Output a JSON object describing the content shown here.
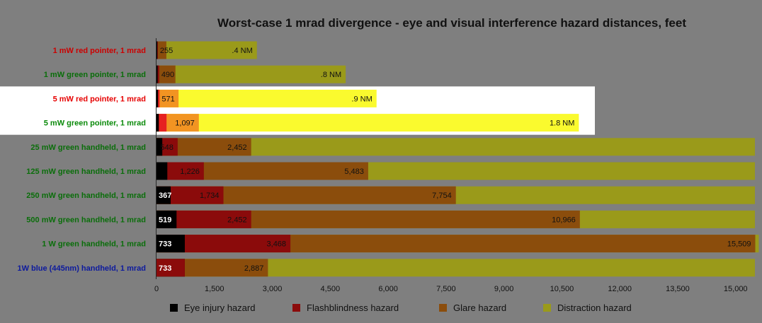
{
  "chart_data": {
    "type": "bar",
    "orientation": "horizontal",
    "stacked": true,
    "title": "Worst-case 1 mrad divergence - eye and visual interference hazard distances, feet",
    "xlabel": "",
    "ylabel": "",
    "xlim": [
      0,
      15500
    ],
    "x_ticks": [
      "0",
      "1,500",
      "3,000",
      "4,500",
      "6,000",
      "7,500",
      "9,000",
      "10,500",
      "12,000",
      "13,500",
      "15,000"
    ],
    "x_tick_values": [
      0,
      1500,
      3000,
      4500,
      6000,
      7500,
      9000,
      10500,
      12000,
      13500,
      15000
    ],
    "grid": false,
    "legend_position": "bottom",
    "series_names": [
      "Eye injury hazard",
      "Flashblindness hazard",
      "Glare hazard",
      "Distraction hazard"
    ],
    "categories": [
      {
        "label": "1 mW red pointer, 1 mrad",
        "label_color": "#cc0000",
        "highlight": false,
        "segments": [
          {
            "value": 20,
            "color": "#000000",
            "label": ""
          },
          {
            "value": 35,
            "color": "#8b0b0b",
            "label": ""
          },
          {
            "value": 255,
            "color": "#8b4d0c",
            "label": "255"
          },
          {
            "value": 2600,
            "color": "#9a9a1a",
            "label": ".4 NM"
          }
        ]
      },
      {
        "label": "1 mW green pointer, 1 mrad",
        "label_color": "#0a6e0a",
        "highlight": false,
        "segments": [
          {
            "value": 30,
            "color": "#000000",
            "label": ""
          },
          {
            "value": 70,
            "color": "#8b0b0b",
            "label": ""
          },
          {
            "value": 490,
            "color": "#8b4d0c",
            "label": "490"
          },
          {
            "value": 4900,
            "color": "#9a9a1a",
            "label": ".8 NM"
          }
        ]
      },
      {
        "label": "5 mW red pointer, 1 mrad",
        "label_color": "#e60000",
        "highlight": true,
        "segments": [
          {
            "value": 40,
            "color": "#000000",
            "label": ""
          },
          {
            "value": 80,
            "color": "#e62121",
            "label": ""
          },
          {
            "value": 571,
            "color": "#f29422",
            "label": "571"
          },
          {
            "value": 5700,
            "color": "#fafa2e",
            "label": ".9 NM"
          }
        ]
      },
      {
        "label": "5 mW green pointer, 1 mrad",
        "label_color": "#0a8a0a",
        "highlight": true,
        "segments": [
          {
            "value": 60,
            "color": "#000000",
            "label": ""
          },
          {
            "value": 260,
            "color": "#e62121",
            "label": ""
          },
          {
            "value": 1097,
            "color": "#f29422",
            "label": "1,097"
          },
          {
            "value": 10940,
            "color": "#fafa2e",
            "label": "1.8 NM"
          }
        ]
      },
      {
        "label": "25 mW green handheld, 1 mrad",
        "label_color": "#0a6e0a",
        "highlight": false,
        "segments": [
          {
            "value": 150,
            "color": "#000000",
            "label": ""
          },
          {
            "value": 548,
            "color": "#8b0b0b",
            "label": "548"
          },
          {
            "value": 2452,
            "color": "#8b4d0c",
            "label": "2,452"
          },
          {
            "value": 15500,
            "color": "#9a9a1a",
            "label": ""
          }
        ]
      },
      {
        "label": "125 mW green handheld, 1 mrad",
        "label_color": "#0a6e0a",
        "highlight": false,
        "segments": [
          {
            "value": 280,
            "color": "#000000",
            "label": ""
          },
          {
            "value": 1226,
            "color": "#8b0b0b",
            "label": "1,226"
          },
          {
            "value": 5483,
            "color": "#8b4d0c",
            "label": "5,483"
          },
          {
            "value": 15500,
            "color": "#9a9a1a",
            "label": ""
          }
        ]
      },
      {
        "label": "250 mW green handheld, 1 mrad",
        "label_color": "#0a6e0a",
        "highlight": false,
        "segments": [
          {
            "value": 367,
            "color": "#000000",
            "label": "367"
          },
          {
            "value": 1734,
            "color": "#8b0b0b",
            "label": "1,734"
          },
          {
            "value": 7754,
            "color": "#8b4d0c",
            "label": "7,754"
          },
          {
            "value": 15500,
            "color": "#9a9a1a",
            "label": ""
          }
        ]
      },
      {
        "label": "500 mW green handheld, 1 mrad",
        "label_color": "#0a6e0a",
        "highlight": false,
        "segments": [
          {
            "value": 519,
            "color": "#000000",
            "label": "519"
          },
          {
            "value": 2452,
            "color": "#8b0b0b",
            "label": "2,452"
          },
          {
            "value": 10966,
            "color": "#8b4d0c",
            "label": "10,966"
          },
          {
            "value": 15500,
            "color": "#9a9a1a",
            "label": ""
          }
        ]
      },
      {
        "label": "1 W green handheld, 1 mrad",
        "label_color": "#0a6e0a",
        "highlight": false,
        "segments": [
          {
            "value": 733,
            "color": "#000000",
            "label": "733"
          },
          {
            "value": 3468,
            "color": "#8b0b0b",
            "label": "3,468"
          },
          {
            "value": 15509,
            "color": "#8b4d0c",
            "label": "15,509"
          },
          {
            "value": 15600,
            "color": "#9a9a1a",
            "label": ""
          }
        ]
      },
      {
        "label": "1W blue (445nm) handheld, 1 mrad",
        "label_color": "#0d1a9e",
        "highlight": false,
        "segments": [
          {
            "value": 733,
            "color": "#000000",
            "label": "733"
          },
          {
            "value": 733,
            "color": "#8b0b0b",
            "label": ""
          },
          {
            "value": 2887,
            "color": "#8b4d0c",
            "label": "2,887"
          },
          {
            "value": 15500,
            "color": "#9a9a1a",
            "label": ""
          }
        ]
      }
    ],
    "legend": [
      {
        "name": "Eye injury hazard",
        "color": "#000000"
      },
      {
        "name": "Flashblindness hazard",
        "color": "#8b0b0b"
      },
      {
        "name": "Glare hazard",
        "color": "#8b4d0c"
      },
      {
        "name": "Distraction hazard",
        "color": "#9a9a1a"
      }
    ]
  }
}
